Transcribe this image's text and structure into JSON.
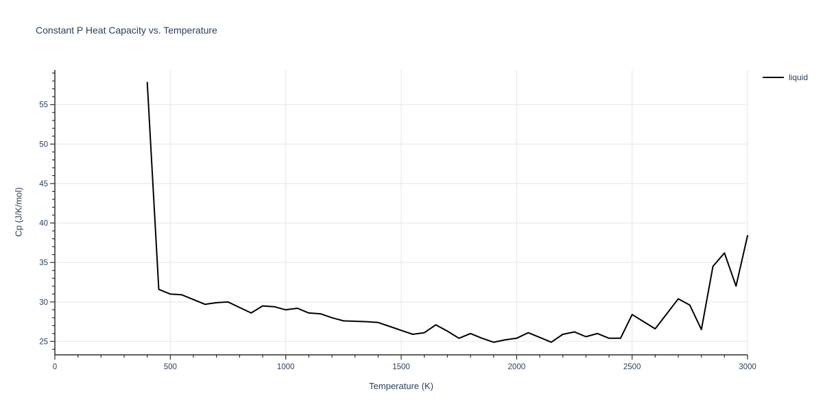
{
  "title": "Constant P Heat Capacity vs. Temperature",
  "legend": {
    "items": [
      {
        "label": "liquid",
        "color": "#000000"
      }
    ]
  },
  "axes": {
    "x": {
      "label": "Temperature (K)",
      "min": 0,
      "max": 3000,
      "major_ticks": [
        0,
        500,
        1000,
        1500,
        2000,
        2500,
        3000
      ],
      "minor_step": 100
    },
    "y": {
      "label": "Cp (J/K/mol)",
      "min": 23.3,
      "max": 59.4,
      "major_ticks": [
        25,
        30,
        35,
        40,
        45,
        50,
        55
      ],
      "minor_step": 1
    }
  },
  "colors": {
    "text": "#2a3f5f",
    "series_line": "#000000",
    "grid": "#e9ebee",
    "axis": "#2b2b2b",
    "background": "#ffffff"
  },
  "chart_data": {
    "type": "line",
    "title": "Constant P Heat Capacity vs. Temperature",
    "xlabel": "Temperature (K)",
    "ylabel": "Cp (J/K/mol)",
    "xlim": [
      0,
      3000
    ],
    "ylim": [
      23.3,
      59.4
    ],
    "grid": true,
    "legend_position": "outside-top-right",
    "series": [
      {
        "name": "liquid",
        "color": "#000000",
        "x": [
          400,
          450,
          500,
          550,
          600,
          650,
          700,
          750,
          800,
          850,
          900,
          950,
          1000,
          1050,
          1100,
          1150,
          1200,
          1250,
          1300,
          1350,
          1400,
          1450,
          1500,
          1550,
          1600,
          1650,
          1700,
          1750,
          1800,
          1850,
          1900,
          1950,
          2000,
          2050,
          2100,
          2150,
          2200,
          2250,
          2300,
          2350,
          2400,
          2450,
          2500,
          2550,
          2600,
          2650,
          2700,
          2750,
          2800,
          2850,
          2900,
          2950,
          3000
        ],
        "y": [
          57.8,
          31.6,
          31.0,
          30.9,
          30.3,
          29.7,
          29.9,
          30.0,
          29.3,
          28.6,
          29.5,
          29.4,
          29.0,
          29.2,
          28.6,
          28.5,
          28.0,
          27.6,
          27.55,
          27.5,
          27.4,
          26.9,
          26.4,
          25.9,
          26.1,
          27.1,
          26.3,
          25.4,
          26.0,
          25.4,
          24.9,
          25.2,
          25.4,
          26.1,
          25.5,
          24.9,
          25.9,
          26.2,
          25.6,
          26.0,
          25.4,
          25.4,
          28.4,
          27.5,
          26.6,
          28.5,
          30.4,
          29.6,
          26.5,
          34.5,
          36.2,
          32.0,
          38.4
        ]
      }
    ]
  }
}
